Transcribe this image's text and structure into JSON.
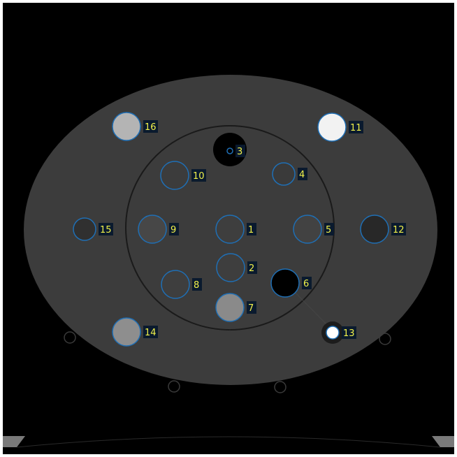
{
  "viewer": {
    "background": "#000000",
    "frame_color": "#ffffff",
    "roi_outline_color": "#1f6fb5",
    "label_color": "#f2f24a",
    "label_bg": "#0a1a2e"
  },
  "phantom": {
    "body_color": "#3c3c3c",
    "inner_ring_color": "#1a1a1a"
  },
  "rois": [
    {
      "label": "1",
      "fill": "#3e3e3e",
      "r": 20
    },
    {
      "label": "2",
      "fill": "#3e3e3e",
      "r": 20
    },
    {
      "label": "3",
      "fill": "#000000",
      "r": 4
    },
    {
      "label": "4",
      "fill": "#3a3a3a",
      "r": 16
    },
    {
      "label": "5",
      "fill": "#424242",
      "r": 20
    },
    {
      "label": "6",
      "fill": "#000000",
      "r": 20
    },
    {
      "label": "7",
      "fill": "#8a8a8a",
      "r": 20
    },
    {
      "label": "8",
      "fill": "#3e3e3e",
      "r": 20
    },
    {
      "label": "9",
      "fill": "#474747",
      "r": 20
    },
    {
      "label": "10",
      "fill": "#3c3c3c",
      "r": 20
    },
    {
      "label": "11",
      "fill": "#f2f2f2",
      "r": 20
    },
    {
      "label": "12",
      "fill": "#282828",
      "r": 20
    },
    {
      "label": "13",
      "fill": "#ffffff",
      "r": 9
    },
    {
      "label": "14",
      "fill": "#8e8e8e",
      "r": 20
    },
    {
      "label": "15",
      "fill": "#303030",
      "r": 16
    },
    {
      "label": "16",
      "fill": "#b4b4b4",
      "r": 20
    }
  ]
}
